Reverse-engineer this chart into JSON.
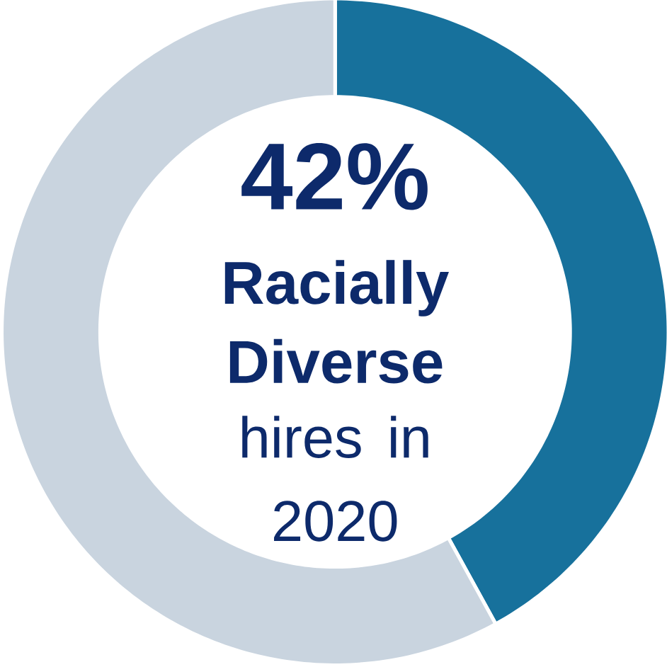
{
  "chart_data": {
    "type": "donut",
    "title": "42%",
    "subtitle": "Racially Diverse",
    "annotations": [
      "hires in 2020"
    ],
    "categories": [
      null,
      null
    ],
    "values": [
      42,
      58
    ],
    "colors": [
      "#17719c",
      "#c9d4df"
    ]
  }
}
